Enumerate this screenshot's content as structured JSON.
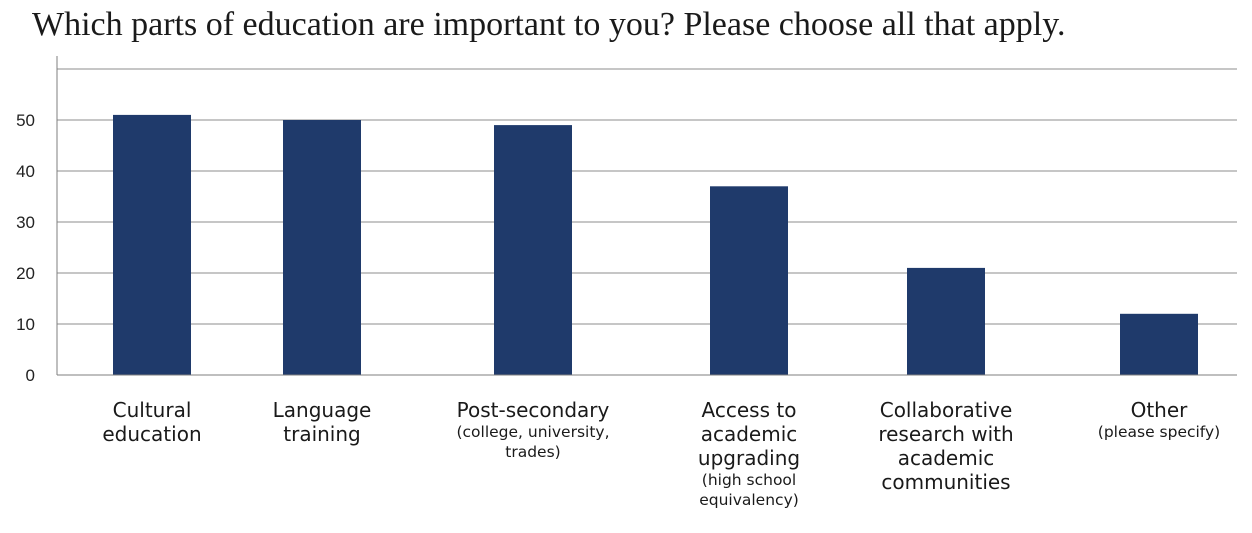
{
  "chart_data": {
    "type": "bar",
    "title": "Which parts of education are important to you? Please choose all that apply.",
    "xlabel": "",
    "ylabel": "",
    "ylim": [
      0,
      60
    ],
    "yticks": [
      0,
      10,
      20,
      30,
      40,
      50
    ],
    "grid": true,
    "legend": "none",
    "bar_color": "#1f3a6b",
    "categories": [
      {
        "main": "Cultural education",
        "sub": ""
      },
      {
        "main": "Language training",
        "sub": ""
      },
      {
        "main": "Post-secondary",
        "sub": "(college, university, trades)"
      },
      {
        "main": "Access to academic upgrading",
        "sub": "(high school equivalency)"
      },
      {
        "main": "Collaborative research with academic communities",
        "sub": ""
      },
      {
        "main": "Other",
        "sub": "(please specify)"
      }
    ],
    "values": [
      51,
      50,
      49,
      37,
      21,
      12
    ]
  }
}
